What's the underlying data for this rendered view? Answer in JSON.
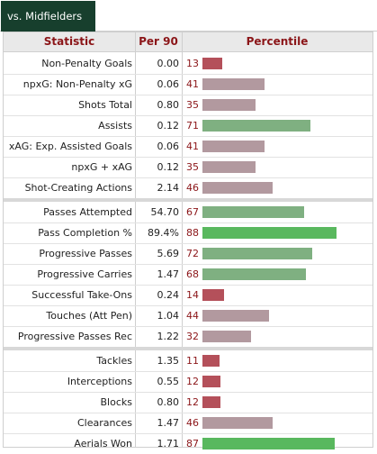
{
  "tab": {
    "label": "vs. Midfielders"
  },
  "table": {
    "headers": {
      "statistic": "Statistic",
      "per90": "Per 90",
      "percentile": "Percentile"
    },
    "colors": {
      "low": "#b4505a",
      "mid": "#b2999f",
      "high_light": "#7fb081",
      "high_strong": "#59b85e",
      "percentile_text": "#8b1518"
    },
    "groups": [
      {
        "rows": [
          {
            "stat": "Non-Penalty Goals",
            "per90": "0.00",
            "percentile": 13
          },
          {
            "stat": "npxG: Non-Penalty xG",
            "per90": "0.06",
            "percentile": 41
          },
          {
            "stat": "Shots Total",
            "per90": "0.80",
            "percentile": 35
          },
          {
            "stat": "Assists",
            "per90": "0.12",
            "percentile": 71
          },
          {
            "stat": "xAG: Exp. Assisted Goals",
            "per90": "0.06",
            "percentile": 41
          },
          {
            "stat": "npxG + xAG",
            "per90": "0.12",
            "percentile": 35
          },
          {
            "stat": "Shot-Creating Actions",
            "per90": "2.14",
            "percentile": 46
          }
        ]
      },
      {
        "rows": [
          {
            "stat": "Passes Attempted",
            "per90": "54.70",
            "percentile": 67
          },
          {
            "stat": "Pass Completion %",
            "per90": "89.4%",
            "percentile": 88
          },
          {
            "stat": "Progressive Passes",
            "per90": "5.69",
            "percentile": 72
          },
          {
            "stat": "Progressive Carries",
            "per90": "1.47",
            "percentile": 68
          },
          {
            "stat": "Successful Take-Ons",
            "per90": "0.24",
            "percentile": 14
          },
          {
            "stat": "Touches (Att Pen)",
            "per90": "1.04",
            "percentile": 44
          },
          {
            "stat": "Progressive Passes Rec",
            "per90": "1.22",
            "percentile": 32
          }
        ]
      },
      {
        "rows": [
          {
            "stat": "Tackles",
            "per90": "1.35",
            "percentile": 11
          },
          {
            "stat": "Interceptions",
            "per90": "0.55",
            "percentile": 12
          },
          {
            "stat": "Blocks",
            "per90": "0.80",
            "percentile": 12
          },
          {
            "stat": "Clearances",
            "per90": "1.47",
            "percentile": 46
          },
          {
            "stat": "Aerials Won",
            "per90": "1.71",
            "percentile": 87
          }
        ]
      }
    ]
  }
}
